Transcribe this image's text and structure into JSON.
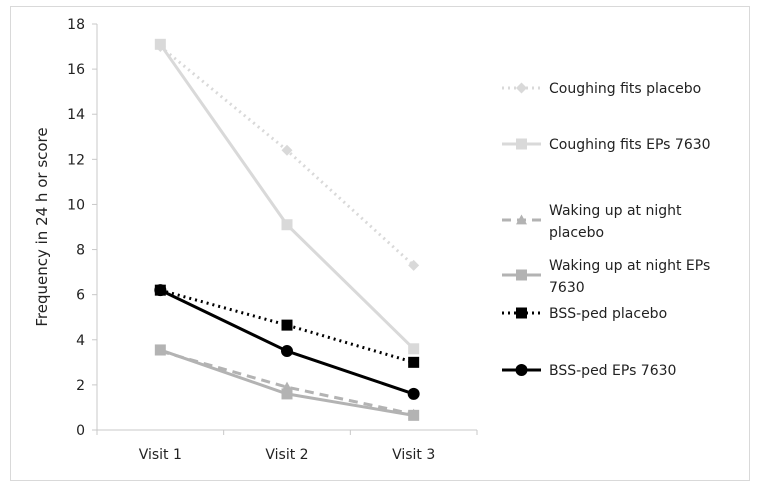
{
  "chart_data": {
    "type": "line",
    "title": "",
    "xlabel": "",
    "ylabel": "Frequency in 24 h or score",
    "categories": [
      "Visit 1",
      "Visit 2",
      "Visit 3"
    ],
    "ylim": [
      0,
      18
    ],
    "yticks": [
      0,
      2,
      4,
      6,
      8,
      10,
      12,
      14,
      16,
      18
    ],
    "grid": false,
    "legend_position": "right",
    "series": [
      {
        "name": "Coughing fits placebo",
        "label_lines": [
          "Coughing fits placebo"
        ],
        "values": [
          17.0,
          12.4,
          7.3
        ],
        "color": "#d9d9d9",
        "dash": "dotted",
        "marker": "diamond"
      },
      {
        "name": "Coughing fits EPs 7630",
        "label_lines": [
          "Coughing fits EPs 7630"
        ],
        "values": [
          17.1,
          9.1,
          3.6
        ],
        "color": "#d9d9d9",
        "dash": "solid",
        "marker": "square"
      },
      {
        "name": "Waking up at night placebo",
        "label_lines": [
          "Waking up at night",
          "placebo"
        ],
        "values": [
          3.5,
          1.9,
          0.7
        ],
        "color": "#b3b3b3",
        "dash": "dashed",
        "marker": "triangle"
      },
      {
        "name": "Waking up at night EPs 7630",
        "label_lines": [
          "Waking up at night EPs",
          "7630"
        ],
        "values": [
          3.55,
          1.6,
          0.65
        ],
        "color": "#b3b3b3",
        "dash": "solid",
        "marker": "square"
      },
      {
        "name": "BSS-ped placebo",
        "label_lines": [
          "BSS-ped placebo"
        ],
        "values": [
          6.2,
          4.65,
          3.0
        ],
        "color": "#000000",
        "dash": "dotted",
        "marker": "square"
      },
      {
        "name": "BSS-ped EPs 7630",
        "label_lines": [
          "BSS-ped EPs 7630"
        ],
        "values": [
          6.2,
          3.5,
          1.6
        ],
        "color": "#000000",
        "dash": "solid",
        "marker": "circle"
      }
    ]
  }
}
